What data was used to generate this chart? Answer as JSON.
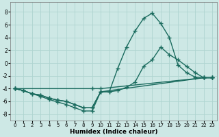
{
  "xlabel": "Humidex (Indice chaleur)",
  "xlim": [
    -0.5,
    23.5
  ],
  "ylim": [
    -9,
    9.5
  ],
  "yticks": [
    -8,
    -6,
    -4,
    -2,
    0,
    2,
    4,
    6,
    8
  ],
  "xticks": [
    0,
    1,
    2,
    3,
    4,
    5,
    6,
    7,
    8,
    9,
    10,
    11,
    12,
    13,
    14,
    15,
    16,
    17,
    18,
    19,
    20,
    21,
    22,
    23
  ],
  "bg_color": "#cde8e5",
  "grid_color": "#afd4d0",
  "line_color": "#1a6b5e",
  "line_width": 1.0,
  "marker": "+",
  "marker_size": 4,
  "lines": [
    {
      "x": [
        0,
        1,
        2,
        3,
        4,
        5,
        6,
        7,
        8,
        9,
        10,
        11,
        12,
        13,
        14,
        15,
        16,
        17,
        18,
        19,
        20,
        21,
        22,
        23
      ],
      "y": [
        -4.0,
        -4.3,
        -4.8,
        -5.2,
        -5.7,
        -6.1,
        -6.5,
        -7.0,
        -7.5,
        -7.5,
        -4.5,
        -4.5,
        -0.8,
        2.5,
        5.0,
        7.0,
        7.8,
        6.2,
        4.0,
        -0.3,
        -1.5,
        -2.2,
        -2.3,
        -2.3
      ]
    },
    {
      "x": [
        0,
        1,
        2,
        3,
        4,
        5,
        6,
        7,
        8,
        9,
        10,
        11,
        12,
        13,
        14,
        15,
        16,
        17,
        18,
        19,
        20,
        21,
        22,
        23
      ],
      "y": [
        -4.0,
        -4.3,
        -4.8,
        -5.0,
        -5.5,
        -5.8,
        -6.0,
        -6.5,
        -7.0,
        -7.0,
        -4.5,
        -4.5,
        -4.3,
        -3.8,
        -3.0,
        -0.5,
        0.5,
        2.5,
        1.3,
        0.5,
        -0.5,
        -1.5,
        -2.3,
        -2.3
      ]
    },
    {
      "x": [
        0,
        9,
        10,
        22,
        23
      ],
      "y": [
        -4.0,
        -4.0,
        -4.0,
        -2.3,
        -2.3
      ]
    },
    {
      "x": [
        0,
        1,
        2,
        3,
        4,
        5,
        6,
        7,
        8,
        9,
        10,
        22,
        23
      ],
      "y": [
        -4.0,
        -4.3,
        -4.8,
        -5.0,
        -5.5,
        -5.8,
        -6.0,
        -6.5,
        -7.0,
        -7.0,
        -4.5,
        -2.3,
        -2.3
      ]
    }
  ]
}
